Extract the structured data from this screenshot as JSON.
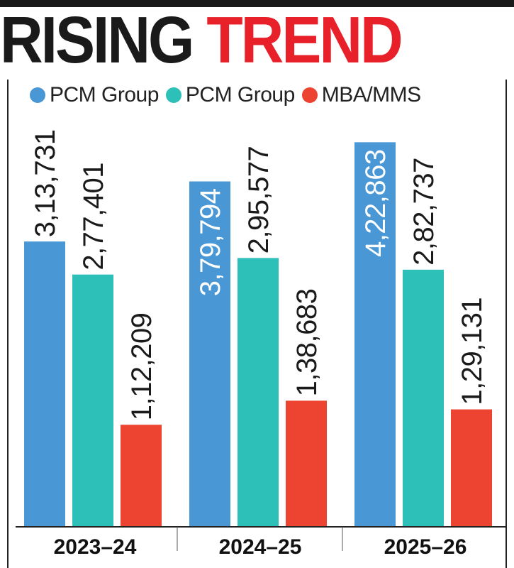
{
  "headline": {
    "word1": "RISING",
    "word2": "TREND"
  },
  "colors": {
    "headline_dark": "#1a1a1a",
    "headline_accent": "#e8202a",
    "axis": "#222222"
  },
  "chart_data": {
    "type": "bar",
    "categories": [
      "2023–24",
      "2024–25",
      "2025–26"
    ],
    "series": [
      {
        "name": "PCM Group",
        "color": "#4a97d6",
        "values": [
          313731,
          379794,
          422863
        ],
        "labels": [
          "3,13,731",
          "3,79,794",
          "4,22,863"
        ]
      },
      {
        "name": "PCM Group",
        "color": "#2dc0b8",
        "values": [
          277401,
          295577,
          282737
        ],
        "labels": [
          "2,77,401",
          "2,95,577",
          "2,82,737"
        ]
      },
      {
        "name": "MBA/MMS",
        "color": "#ec4430",
        "values": [
          112209,
          138683,
          129131
        ],
        "labels": [
          "1,12,209",
          "1,38,683",
          "1,29,131"
        ]
      }
    ],
    "ylim": [
      0,
      445000
    ],
    "legend": "top",
    "grid": false,
    "xlabel": "",
    "ylabel": ""
  }
}
